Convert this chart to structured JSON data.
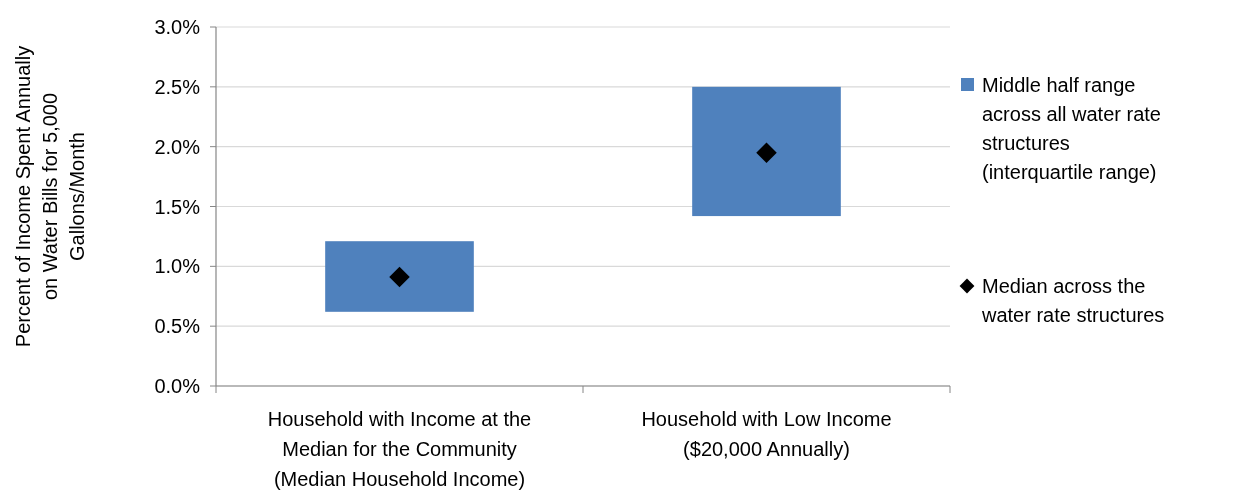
{
  "chart_data": {
    "type": "bar",
    "ylabel": "Percent of Income Spent Annually on Water Bills for 5,000 Gallons/Month",
    "categories": [
      "Household with Income at the Median for the Community (Median Household Income)",
      "Household with Low Income ($20,000 Annually)"
    ],
    "series": [
      {
        "name": "Middle half range across all water rate structures (interquartile range)",
        "type": "bar",
        "color": "#4f81bd",
        "base": [
          0.62,
          1.42
        ],
        "values": [
          0.59,
          1.08
        ]
      },
      {
        "name": "Median across the water rate structures",
        "type": "scatter",
        "color": "#000000",
        "values": [
          0.91,
          1.95
        ]
      }
    ],
    "marker": "diamond",
    "ylim": [
      0,
      3
    ],
    "yticks": [
      {
        "value": 0,
        "label": "0.0%"
      },
      {
        "value": 0.5,
        "label": "0.5%"
      },
      {
        "value": 1,
        "label": "1.0%"
      },
      {
        "value": 1.5,
        "label": "1.5%"
      },
      {
        "value": 2,
        "label": "2.0%"
      },
      {
        "value": 2.5,
        "label": "2.5%"
      },
      {
        "value": 3,
        "label": "3.0%"
      }
    ],
    "grid": "y",
    "legend": "right"
  }
}
